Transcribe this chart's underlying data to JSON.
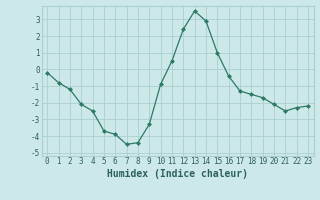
{
  "x": [
    0,
    1,
    2,
    3,
    4,
    5,
    6,
    7,
    8,
    9,
    10,
    11,
    12,
    13,
    14,
    15,
    16,
    17,
    18,
    19,
    20,
    21,
    22,
    23
  ],
  "y": [
    -0.2,
    -0.8,
    -1.2,
    -2.1,
    -2.5,
    -3.7,
    -3.9,
    -4.5,
    -4.4,
    -3.3,
    -0.9,
    0.5,
    2.4,
    3.5,
    2.9,
    1.0,
    -0.4,
    -1.3,
    -1.5,
    -1.7,
    -2.1,
    -2.5,
    -2.3,
    -2.2
  ],
  "xlim": [
    -0.5,
    23.5
  ],
  "ylim": [
    -5.2,
    3.8
  ],
  "yticks": [
    -5,
    -4,
    -3,
    -2,
    -1,
    0,
    1,
    2,
    3
  ],
  "xticks": [
    0,
    1,
    2,
    3,
    4,
    5,
    6,
    7,
    8,
    9,
    10,
    11,
    12,
    13,
    14,
    15,
    16,
    17,
    18,
    19,
    20,
    21,
    22,
    23
  ],
  "xlabel": "Humidex (Indice chaleur)",
  "line_color": "#2d7a65",
  "marker": "D",
  "marker_size": 2.0,
  "bg_color": "#cce8e8",
  "grid_color": "#aacfcf",
  "tick_color": "#2d5f5f",
  "xlabel_fontsize": 7,
  "tick_fontsize": 5.5
}
